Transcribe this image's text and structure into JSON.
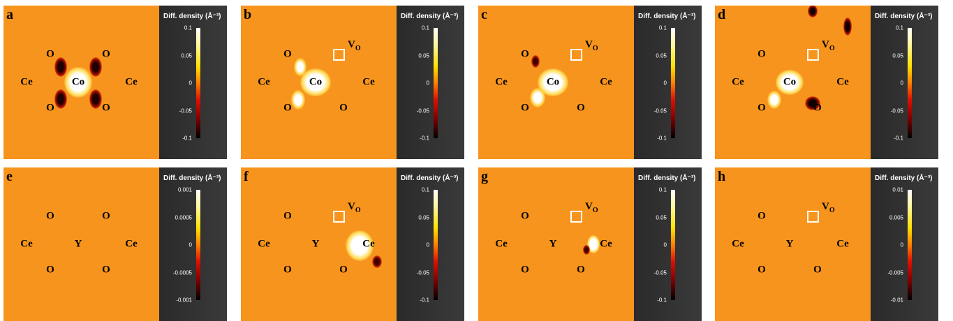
{
  "panels": [
    {
      "label": "a",
      "atoms": [
        "O",
        "Ce",
        "Co",
        "Ce",
        "O",
        "O",
        "O"
      ],
      "colorbar": {
        "title": "Diff. density (Å⁻³)",
        "ticks": [
          "0.1",
          "0.05",
          "0",
          "-0.05",
          "-0.1"
        ]
      }
    },
    {
      "label": "b",
      "atoms": [
        "O",
        "Ce",
        "Co",
        "Ce",
        "O",
        "O"
      ],
      "vacancy": {
        "text": "V",
        "subscript": "O"
      },
      "colorbar": {
        "title": "Diff. density (Å⁻³)",
        "ticks": [
          "0.1",
          "0.05",
          "0",
          "-0.05",
          "-0.1"
        ]
      }
    },
    {
      "label": "c",
      "atoms": [
        "O",
        "Ce",
        "Co",
        "Ce",
        "O",
        "O"
      ],
      "vacancy": {
        "text": "V",
        "subscript": "O"
      },
      "colorbar": {
        "title": "Diff. density (Å⁻³)",
        "ticks": [
          "0.1",
          "0.05",
          "0",
          "-0.05",
          "-0.1"
        ]
      }
    },
    {
      "label": "d",
      "atoms": [
        "O",
        "Ce",
        "Co",
        "Ce",
        "O",
        "O"
      ],
      "vacancy": {
        "text": "V",
        "subscript": "O"
      },
      "colorbar": {
        "title": "Diff. density (Å⁻³)",
        "ticks": [
          "0.1",
          "0.05",
          "0",
          "-0.05",
          "-0.1"
        ]
      }
    },
    {
      "label": "e",
      "atoms": [
        "O",
        "Ce",
        "Y",
        "Ce",
        "O",
        "O",
        "O"
      ],
      "colorbar": {
        "title": "Diff. density (Å⁻³)",
        "ticks": [
          "0.001",
          "0.0005",
          "0",
          "-0.0005",
          "-0.001"
        ]
      }
    },
    {
      "label": "f",
      "atoms": [
        "O",
        "Ce",
        "Y",
        "Ce",
        "O",
        "O"
      ],
      "vacancy": {
        "text": "V",
        "subscript": "O"
      },
      "colorbar": {
        "title": "Diff. density (Å⁻³)",
        "ticks": [
          "0.1",
          "0.05",
          "0",
          "-0.05",
          "-0.1"
        ]
      }
    },
    {
      "label": "g",
      "atoms": [
        "O",
        "Ce",
        "Y",
        "Ce",
        "O",
        "O"
      ],
      "vacancy": {
        "text": "V",
        "subscript": "O"
      },
      "colorbar": {
        "title": "Diff. density (Å⁻³)",
        "ticks": [
          "0.1",
          "0.05",
          "0",
          "-0.05",
          "-0.1"
        ]
      }
    },
    {
      "label": "h",
      "atoms": [
        "O",
        "Ce",
        "Y",
        "Ce",
        "O",
        "O"
      ],
      "vacancy": {
        "text": "V",
        "subscript": "O"
      },
      "colorbar": {
        "title": "Diff. density (Å⁻³)",
        "ticks": [
          "0.01",
          "0.005",
          "0",
          "-0.005",
          "-0.01"
        ]
      }
    }
  ]
}
